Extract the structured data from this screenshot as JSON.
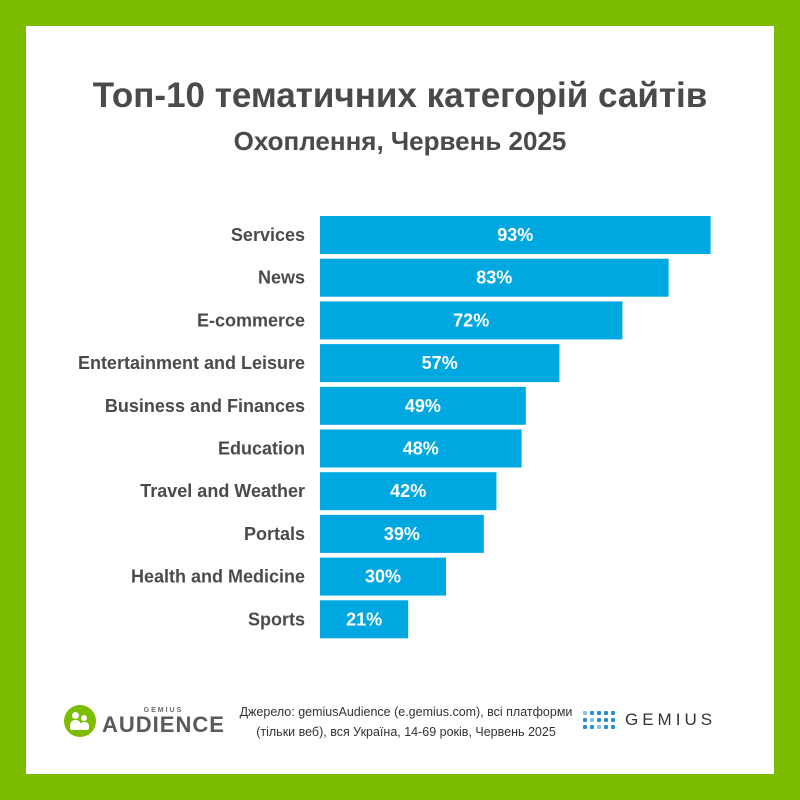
{
  "title": "Топ-10 тематичних категорій сайтів",
  "subtitle": "Охоплення, Червень 2025",
  "chart_data": {
    "type": "bar",
    "orientation": "horizontal",
    "title": "Топ-10 тематичних категорій сайтів",
    "subtitle": "Охоплення, Червень 2025",
    "categories": [
      "Services",
      "News",
      "E-commerce",
      "Entertainment and Leisure",
      "Business and Finances",
      "Education",
      "Travel and Weather",
      "Portals",
      "Health and Medicine",
      "Sports"
    ],
    "values": [
      93,
      83,
      72,
      57,
      49,
      48,
      42,
      39,
      30,
      21
    ],
    "value_suffix": "%",
    "xlim": [
      0,
      100
    ],
    "grid": false,
    "legend": "none",
    "bar_color": "#00a8e1"
  },
  "footer": {
    "source_line1": "Джерело: gemiusAudience (e.gemius.com), всі платформи",
    "source_line2": "(тільки веб), вся Україна, 14-69 років, Червень 2025",
    "logo_left_small": "GEMIUS",
    "logo_left_big": "AUDIENCE",
    "logo_right": "GEMIUS"
  },
  "colors": {
    "frame": "#7dbd00",
    "background": "#ffffff",
    "bar": "#00a8e1",
    "text": "#4a4a4a"
  }
}
